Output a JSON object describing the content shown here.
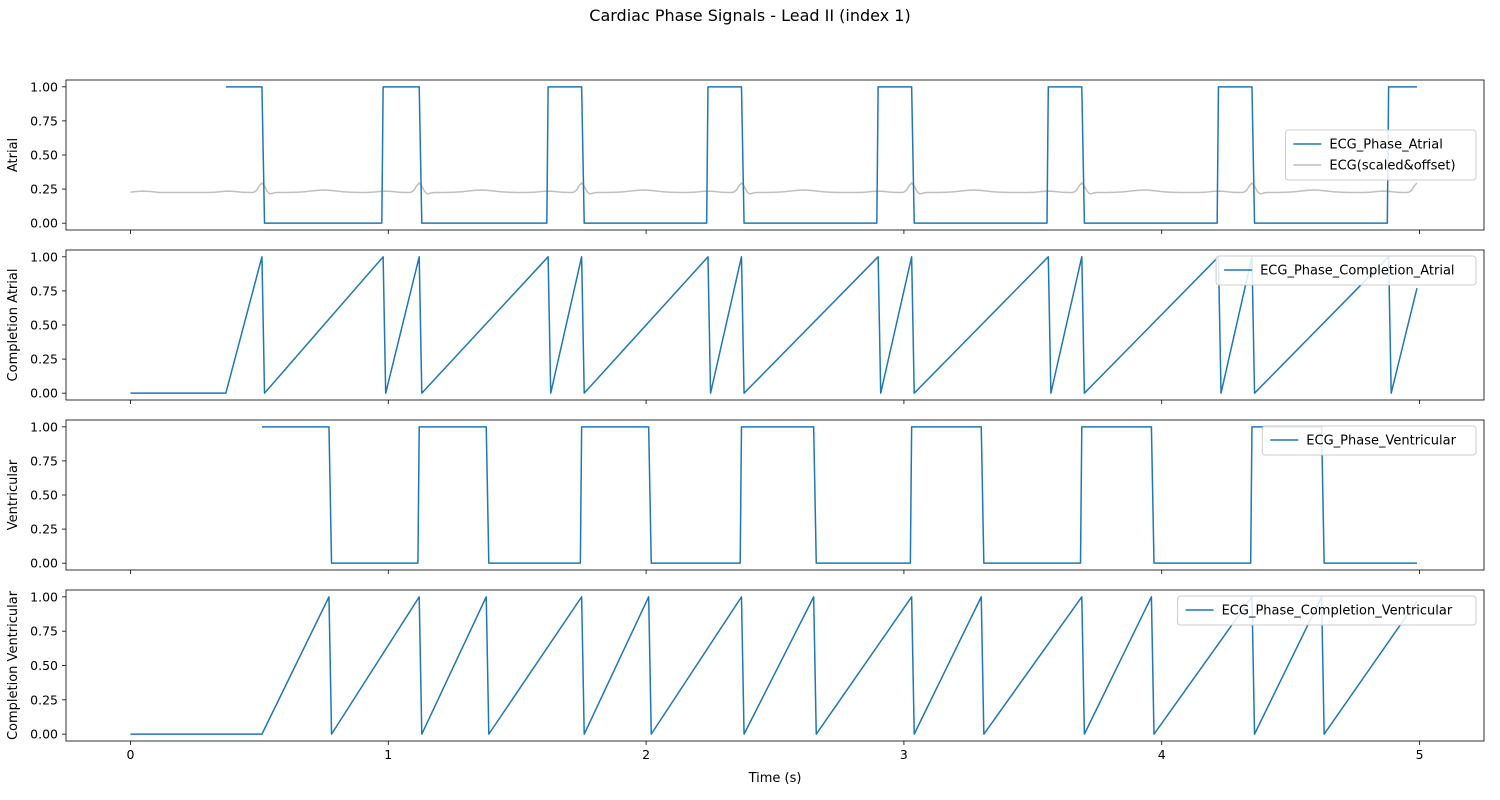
{
  "chart_data": {
    "type": "line",
    "title": "Cardiac Phase Signals - Lead II (index 1)",
    "xlabel": "Time (s)",
    "xlim": [
      -0.25,
      5.25
    ],
    "xticks": [
      0,
      1,
      2,
      3,
      4,
      5
    ],
    "xtick_labels": [
      "0",
      "1",
      "2",
      "3",
      "4",
      "5"
    ],
    "yticks": [
      0,
      0.25,
      0.5,
      0.75,
      1.0
    ],
    "ytick_labels": [
      "0.00",
      "0.25",
      "0.50",
      "0.75",
      "1.00"
    ],
    "ylim": [
      -0.05,
      1.05
    ],
    "colors": {
      "primary": "#1f77b4",
      "ecg": "#bfbfbf"
    },
    "beats": {
      "p_onsets": [
        0.98,
        1.62,
        2.24,
        2.9,
        3.56,
        4.22,
        4.88
      ],
      "r_peaks": [
        0.51,
        1.12,
        1.75,
        2.37,
        3.03,
        3.69,
        4.35,
        4.99
      ],
      "t_ends": [
        0.77,
        1.38,
        2.01,
        2.65,
        3.3,
        3.96,
        4.62
      ]
    },
    "panels": [
      {
        "id": "atrial",
        "ylabel": "Atrial",
        "legend_position": "center-right",
        "series": [
          {
            "name": "ECG_Phase_Atrial",
            "color": "#1f77b4"
          },
          {
            "name": "ECG(scaled&offset)",
            "color": "#bfbfbf"
          }
        ]
      },
      {
        "id": "completion-atrial",
        "ylabel": "Completion Atrial",
        "legend_position": "top-right",
        "series": [
          {
            "name": "ECG_Phase_Completion_Atrial",
            "color": "#1f77b4"
          }
        ]
      },
      {
        "id": "ventricular",
        "ylabel": "Ventricular",
        "legend_position": "top-right",
        "series": [
          {
            "name": "ECG_Phase_Ventricular",
            "color": "#1f77b4"
          }
        ]
      },
      {
        "id": "completion-ventricular",
        "ylabel": "Completion Ventricular",
        "legend_position": "top-right",
        "series": [
          {
            "name": "ECG_Phase_Completion_Ventricular",
            "color": "#1f77b4"
          }
        ]
      }
    ]
  }
}
